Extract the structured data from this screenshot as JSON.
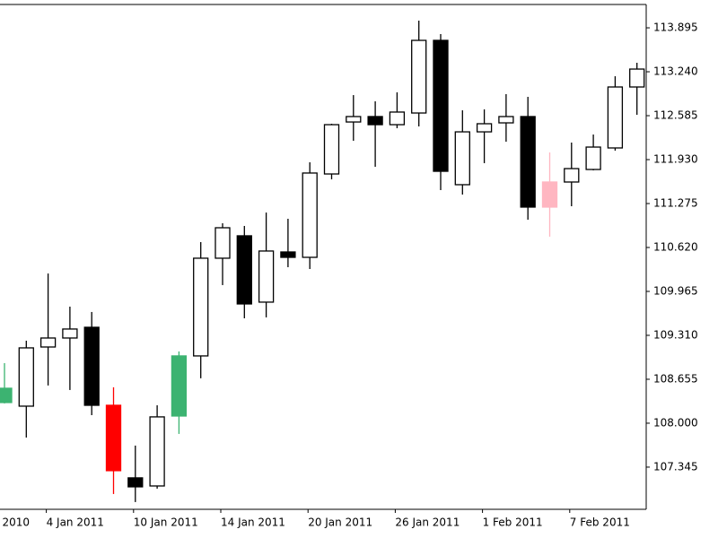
{
  "chart_data": {
    "type": "candlestick",
    "x": [
      null,
      null,
      "4 Jan 2011",
      null,
      null,
      null,
      "10 Jan 2011",
      null,
      null,
      null,
      "14 Jan 2011",
      null,
      null,
      null,
      "20 Jan 2011",
      null,
      null,
      null,
      "26 Jan 2011",
      null,
      null,
      null,
      "1 Feb 2011",
      null,
      null,
      null,
      "7 Feb 2011",
      null,
      null,
      null
    ],
    "x_cut_label": "2010",
    "open": [
      108.308,
      108.254,
      109.136,
      109.27,
      109.43,
      108.267,
      107.185,
      107.064,
      108.107,
      109.003,
      110.46,
      110.794,
      109.805,
      110.553,
      110.473,
      111.716,
      112.491,
      112.572,
      112.451,
      112.625,
      113.708,
      111.556,
      112.344,
      112.478,
      112.572,
      111.596,
      111.596,
      111.783,
      112.104,
      113.013
    ],
    "high": [
      108.896,
      109.23,
      110.232,
      109.738,
      109.658,
      108.535,
      107.666,
      108.267,
      109.07,
      110.7,
      110.981,
      110.941,
      111.141,
      111.048,
      111.89,
      112.465,
      112.892,
      112.799,
      112.933,
      114.002,
      113.801,
      112.665,
      112.679,
      112.906,
      112.866,
      112.037,
      112.184,
      112.304,
      113.173,
      113.374
    ],
    "low": [
      108.295,
      107.786,
      108.562,
      108.495,
      108.12,
      106.944,
      106.824,
      107.024,
      107.84,
      108.669,
      110.059,
      109.564,
      109.577,
      110.326,
      110.299,
      111.636,
      112.211,
      111.823,
      112.398,
      112.425,
      111.476,
      111.409,
      111.877,
      112.197,
      111.034,
      110.781,
      111.235,
      111.77,
      112.064,
      112.598
    ],
    "close": [
      108.521,
      109.123,
      109.27,
      109.404,
      108.267,
      107.292,
      107.051,
      108.094,
      109.003,
      110.46,
      110.914,
      109.778,
      110.567,
      110.473,
      111.73,
      112.451,
      112.572,
      112.451,
      112.639,
      113.708,
      111.756,
      112.344,
      112.465,
      112.572,
      111.222,
      111.222,
      111.796,
      112.117,
      113.013,
      113.28
    ],
    "colors": [
      "#3cb371",
      "#ffffff",
      "#ffffff",
      "#ffffff",
      "#000000",
      "#ff0000",
      "#000000",
      "#ffffff",
      "#3cb371",
      "#ffffff",
      "#ffffff",
      "#000000",
      "#ffffff",
      "#000000",
      "#ffffff",
      "#ffffff",
      "#ffffff",
      "#000000",
      "#ffffff",
      "#ffffff",
      "#000000",
      "#ffffff",
      "#ffffff",
      "#ffffff",
      "#000000",
      "#ffb6c1",
      "#ffffff",
      "#ffffff",
      "#ffffff",
      "#ffffff"
    ],
    "ylim": [
      106.716,
      114.243
    ],
    "yticks": [
      113.895,
      {
        "value": 113.24,
        "label": "113.240"
      },
      112.585,
      {
        "value": 111.93,
        "label": "111.930"
      },
      111.275,
      {
        "value": 110.62,
        "label": "110.620"
      },
      109.965,
      {
        "value": 109.31,
        "label": "109.310"
      },
      108.655,
      {
        "value": 108,
        "label": "108.000"
      },
      107.345
    ],
    "axis_position": "right"
  }
}
